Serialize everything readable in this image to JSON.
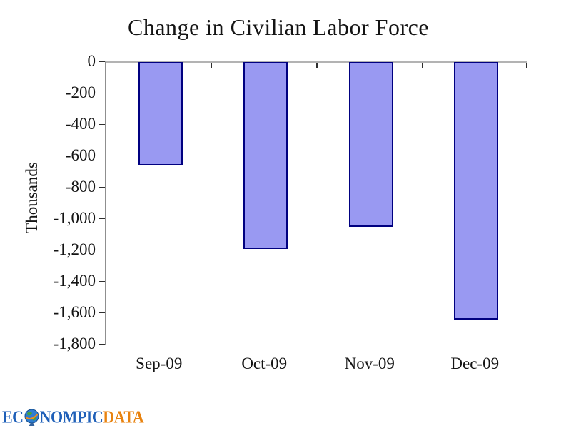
{
  "chart_data": {
    "type": "bar",
    "title": "Change in Civilian Labor Force",
    "ylabel": "Thousands",
    "categories": [
      "Sep-09",
      "Oct-09",
      "Nov-09",
      "Dec-09"
    ],
    "values": [
      -660,
      -1190,
      -1050,
      -1640
    ],
    "ylim": [
      -1800,
      0
    ],
    "ytick_step": 200,
    "ytick_labels": [
      "0",
      "-200",
      "-400",
      "-600",
      "-800",
      "-1,000",
      "-1,200",
      "-1,400",
      "-1,600",
      "-1,800"
    ],
    "grid": false,
    "legend": false,
    "bar_fill": "#9999f2",
    "bar_border": "#000080",
    "zero_line_color": "#b3b3b3",
    "axis_line_color": "#8f8f8f",
    "tick_color": "#2e2e2e",
    "text_color": "#141414"
  },
  "logo": {
    "prefix": "EC",
    "middle": "NOMPIC",
    "suffix": "DATA",
    "blue": "#1e5fb8",
    "orange": "#e8820e",
    "globe_icon": "globe-icon"
  }
}
